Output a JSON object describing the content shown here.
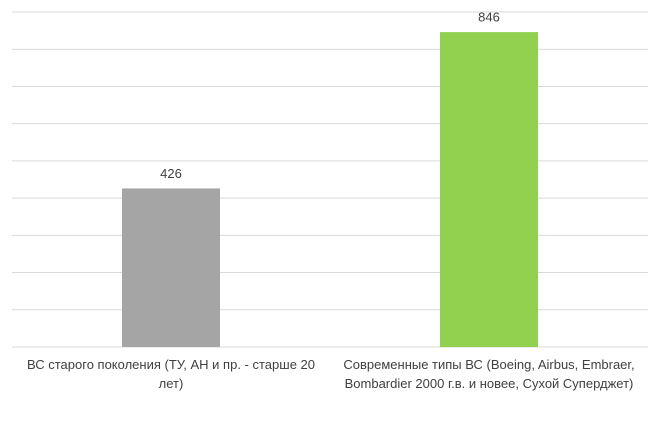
{
  "chart_data": {
    "type": "bar",
    "categories": [
      "ВС старого поколения (ТУ, АН и пр. - старше 20 лет)",
      "Современные типы ВС (Boeing, Airbus, Embraer, Bombardier 2000 г.в. и новее, Сухой Суперджет)"
    ],
    "values": [
      426,
      846
    ],
    "colors": [
      "#a5a5a5",
      "#92d050"
    ],
    "ylim": [
      0,
      900
    ],
    "yticks": [
      0,
      100,
      200,
      300,
      400,
      500,
      600,
      700,
      800,
      900
    ],
    "show_tick_labels": false,
    "grid": true
  }
}
